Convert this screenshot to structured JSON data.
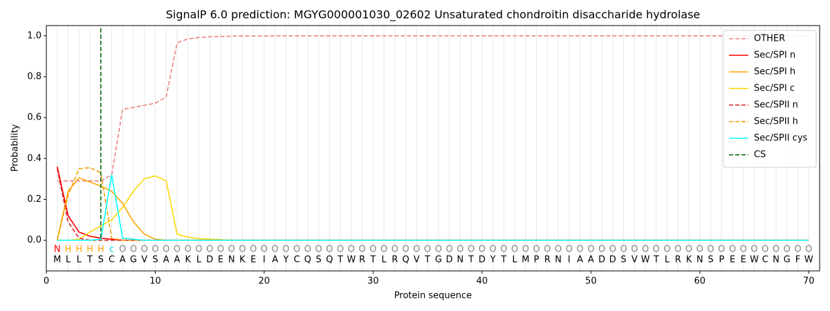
{
  "chart_data": {
    "type": "line",
    "title": "SignalP 6.0 prediction: MGYG000001030_02602 Unsaturated chondroitin disaccharide hydrolase",
    "x_label": "Protein sequence",
    "y_label": "Probability",
    "xlim": [
      0,
      71
    ],
    "ylim": [
      -0.15,
      1.05
    ],
    "xticks": [
      0,
      10,
      20,
      30,
      40,
      50,
      60,
      70
    ],
    "yticks": [
      {
        "value": 0,
        "label": "0.0"
      },
      {
        "value": 0.2,
        "label": "0.2"
      },
      {
        "value": 0.4,
        "label": "0.4"
      },
      {
        "value": 0.6,
        "label": "0.6"
      },
      {
        "value": 0.8,
        "label": "0.8"
      },
      {
        "value": 1,
        "label": "1.0"
      }
    ],
    "legend": "upper right",
    "x": [
      1,
      2,
      3,
      4,
      5,
      6,
      7,
      8,
      9,
      10,
      11,
      12,
      13,
      14,
      15,
      16,
      17,
      18,
      19,
      20,
      21,
      22,
      23,
      24,
      25,
      26,
      27,
      28,
      29,
      30,
      31,
      32,
      33,
      34,
      35,
      36,
      37,
      38,
      39,
      40,
      41,
      42,
      43,
      44,
      45,
      46,
      47,
      48,
      49,
      50,
      51,
      52,
      53,
      54,
      55,
      56,
      57,
      58,
      59,
      60,
      61,
      62,
      63,
      64,
      65,
      66,
      67,
      68,
      69,
      70
    ],
    "sequence": [
      "M",
      "L",
      "L",
      "T",
      "S",
      "C",
      "A",
      "G",
      "V",
      "S",
      "A",
      "A",
      "K",
      "L",
      "D",
      "E",
      "N",
      "K",
      "E",
      "I",
      "A",
      "Y",
      "C",
      "Q",
      "S",
      "Q",
      "T",
      "W",
      "R",
      "T",
      "L",
      "R",
      "Q",
      "V",
      "T",
      "G",
      "D",
      "N",
      "T",
      "D",
      "Y",
      "T",
      "L",
      "M",
      "P",
      "R",
      "N",
      "I",
      "A",
      "A",
      "D",
      "D",
      "S",
      "V",
      "W",
      "T",
      "L",
      "R",
      "K",
      "N",
      "S",
      "P",
      "E",
      "E",
      "W",
      "C",
      "N",
      "G",
      "F",
      "W"
    ],
    "labels": [
      "N",
      "H",
      "H",
      "H",
      "H",
      "c",
      "O",
      "O",
      "O",
      "O",
      "O",
      "O",
      "O",
      "O",
      "O",
      "O",
      "O",
      "O",
      "O",
      "O",
      "O",
      "O",
      "O",
      "O",
      "O",
      "O",
      "O",
      "O",
      "O",
      "O",
      "O",
      "O",
      "O",
      "O",
      "O",
      "O",
      "O",
      "O",
      "O",
      "O",
      "O",
      "O",
      "O",
      "O",
      "O",
      "O",
      "O",
      "O",
      "O",
      "O",
      "O",
      "O",
      "O",
      "O",
      "O",
      "O",
      "O",
      "O",
      "O",
      "O",
      "O",
      "O",
      "O",
      "O",
      "O",
      "O",
      "O",
      "O",
      "O",
      "O"
    ],
    "label_colors": {
      "N": "#ff0000",
      "H": "#ffa500",
      "c": "#00e5ee",
      "O": "#808080"
    },
    "series": [
      {
        "name": "OTHER",
        "color": "#f08080",
        "style": "dashed",
        "values": [
          0.29,
          0.29,
          0.29,
          0.29,
          0.29,
          0.32,
          0.64,
          0.65,
          0.66,
          0.67,
          0.7,
          0.965,
          0.985,
          0.992,
          0.995,
          0.997,
          0.998,
          0.999,
          0.999,
          0.999,
          1,
          1,
          1,
          1,
          1,
          1,
          1,
          1,
          1,
          1,
          1,
          1,
          1,
          1,
          1,
          1,
          1,
          1,
          1,
          1,
          1,
          1,
          1,
          1,
          1,
          1,
          1,
          1,
          1,
          1,
          1,
          1,
          1,
          1,
          1,
          1,
          1,
          1,
          1,
          1,
          1,
          1,
          1,
          1,
          1,
          1,
          1,
          1,
          1,
          1
        ]
      },
      {
        "name": "Sec/SPI n",
        "color": "#ff0000",
        "style": "solid",
        "values": [
          0.36,
          0.12,
          0.04,
          0.02,
          0.01,
          0.005,
          0,
          0,
          0,
          0,
          0,
          0,
          0,
          0,
          0,
          0,
          0,
          0,
          0,
          0,
          0,
          0,
          0,
          0,
          0,
          0,
          0,
          0,
          0,
          0,
          0,
          0,
          0,
          0,
          0,
          0,
          0,
          0,
          0,
          0,
          0,
          0,
          0,
          0,
          0,
          0,
          0,
          0,
          0,
          0,
          0,
          0,
          0,
          0,
          0,
          0,
          0,
          0,
          0,
          0,
          0,
          0,
          0,
          0,
          0,
          0,
          0,
          0,
          0,
          0
        ]
      },
      {
        "name": "Sec/SPI h",
        "color": "#ffa500",
        "style": "solid",
        "values": [
          0,
          0.24,
          0.305,
          0.285,
          0.265,
          0.24,
          0.18,
          0.09,
          0.03,
          0.005,
          0,
          0,
          0,
          0,
          0,
          0,
          0,
          0,
          0,
          0,
          0,
          0,
          0,
          0,
          0,
          0,
          0,
          0,
          0,
          0,
          0,
          0,
          0,
          0,
          0,
          0,
          0,
          0,
          0,
          0,
          0,
          0,
          0,
          0,
          0,
          0,
          0,
          0,
          0,
          0,
          0,
          0,
          0,
          0,
          0,
          0,
          0,
          0,
          0,
          0,
          0,
          0,
          0,
          0,
          0,
          0,
          0,
          0,
          0,
          0
        ]
      },
      {
        "name": "Sec/SPI c",
        "color": "#ffd700",
        "style": "solid",
        "values": [
          0,
          0,
          0.005,
          0.04,
          0.07,
          0.1,
          0.16,
          0.24,
          0.3,
          0.315,
          0.29,
          0.03,
          0.015,
          0.008,
          0.005,
          0.003,
          0,
          0,
          0,
          0,
          0,
          0,
          0,
          0,
          0,
          0,
          0,
          0,
          0,
          0,
          0,
          0,
          0,
          0,
          0,
          0,
          0,
          0,
          0,
          0,
          0,
          0,
          0,
          0,
          0,
          0,
          0,
          0,
          0,
          0,
          0,
          0,
          0,
          0,
          0,
          0,
          0,
          0,
          0,
          0,
          0,
          0,
          0,
          0,
          0,
          0,
          0,
          0,
          0,
          0
        ]
      },
      {
        "name": "Sec/SPII n",
        "color": "#d62020",
        "style": "dashed",
        "values": [
          0.35,
          0.09,
          0.01,
          0,
          0,
          0,
          0,
          0,
          0,
          0,
          0,
          0,
          0,
          0,
          0,
          0,
          0,
          0,
          0,
          0,
          0,
          0,
          0,
          0,
          0,
          0,
          0,
          0,
          0,
          0,
          0,
          0,
          0,
          0,
          0,
          0,
          0,
          0,
          0,
          0,
          0,
          0,
          0,
          0,
          0,
          0,
          0,
          0,
          0,
          0,
          0,
          0,
          0,
          0,
          0,
          0,
          0,
          0,
          0,
          0,
          0,
          0,
          0,
          0,
          0,
          0,
          0,
          0,
          0,
          0
        ]
      },
      {
        "name": "Sec/SPII h",
        "color": "#f59d0b",
        "style": "dashed",
        "values": [
          0,
          0.22,
          0.35,
          0.355,
          0.33,
          0.01,
          0,
          0,
          0,
          0,
          0,
          0,
          0,
          0,
          0,
          0,
          0,
          0,
          0,
          0,
          0,
          0,
          0,
          0,
          0,
          0,
          0,
          0,
          0,
          0,
          0,
          0,
          0,
          0,
          0,
          0,
          0,
          0,
          0,
          0,
          0,
          0,
          0,
          0,
          0,
          0,
          0,
          0,
          0,
          0,
          0,
          0,
          0,
          0,
          0,
          0,
          0,
          0,
          0,
          0,
          0,
          0,
          0,
          0,
          0,
          0,
          0,
          0,
          0,
          0
        ]
      },
      {
        "name": "Sec/SPII cys",
        "color": "#00ffff",
        "style": "solid",
        "values": [
          0,
          0,
          0,
          0,
          0.005,
          0.32,
          0.01,
          0.005,
          0,
          0,
          0,
          0,
          0,
          0,
          0,
          0,
          0,
          0,
          0,
          0,
          0,
          0,
          0,
          0,
          0,
          0,
          0,
          0,
          0,
          0,
          0,
          0,
          0,
          0,
          0,
          0,
          0,
          0,
          0,
          0,
          0,
          0,
          0,
          0,
          0,
          0,
          0,
          0,
          0,
          0,
          0,
          0,
          0,
          0,
          0,
          0,
          0,
          0,
          0,
          0,
          0,
          0,
          0,
          0,
          0,
          0,
          0,
          0,
          0,
          0
        ]
      }
    ],
    "cs": {
      "name": "CS",
      "x": 5,
      "color": "#006400"
    }
  }
}
